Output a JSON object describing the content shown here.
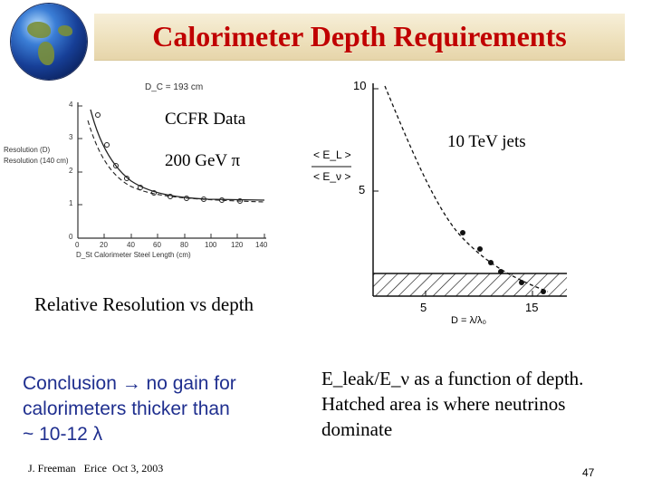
{
  "title": "Calorimeter Depth Requirements",
  "left_plot": {
    "header_label": "D_C = 193 cm",
    "overlay_label_1": "CCFR Data",
    "overlay_label_2": "200 GeV π",
    "ylabel_1": "Resolution (D)",
    "ylabel_2": "Resolution (140 cm)",
    "xlabel": "D_St Calorimeter Steel Length (cm)",
    "y_ticks": [
      "4",
      "3",
      "2",
      "1",
      "0"
    ],
    "x_ticks": [
      "0",
      "20",
      "40",
      "60",
      "80",
      "100",
      "120",
      "140"
    ],
    "caption": "Relative Resolution vs depth"
  },
  "right_plot": {
    "annotation": "10 TeV jets",
    "ylabel_num": "< E_L >",
    "ylabel_den": "< E_ν >",
    "y_ticks": [
      "10",
      "5"
    ],
    "x_ticks": [
      "5",
      "15"
    ],
    "xlabel": "D = λ/λ₀"
  },
  "conclusion": {
    "line1": "Conclusion → no gain for",
    "line2": "calorimeters thicker than",
    "line3": "~ 10-12 λ"
  },
  "description": {
    "line1": "E_leak/E_ν as a function of depth.",
    "line2": "Hatched area is where neutrinos",
    "line3": "dominate"
  },
  "footer": "J. Freeman   Erice  Oct 3, 2003",
  "page_number": "47",
  "colors": {
    "title": "#c00000",
    "conclusion": "#1f2f8f",
    "title_bg": "#eee1bd"
  }
}
